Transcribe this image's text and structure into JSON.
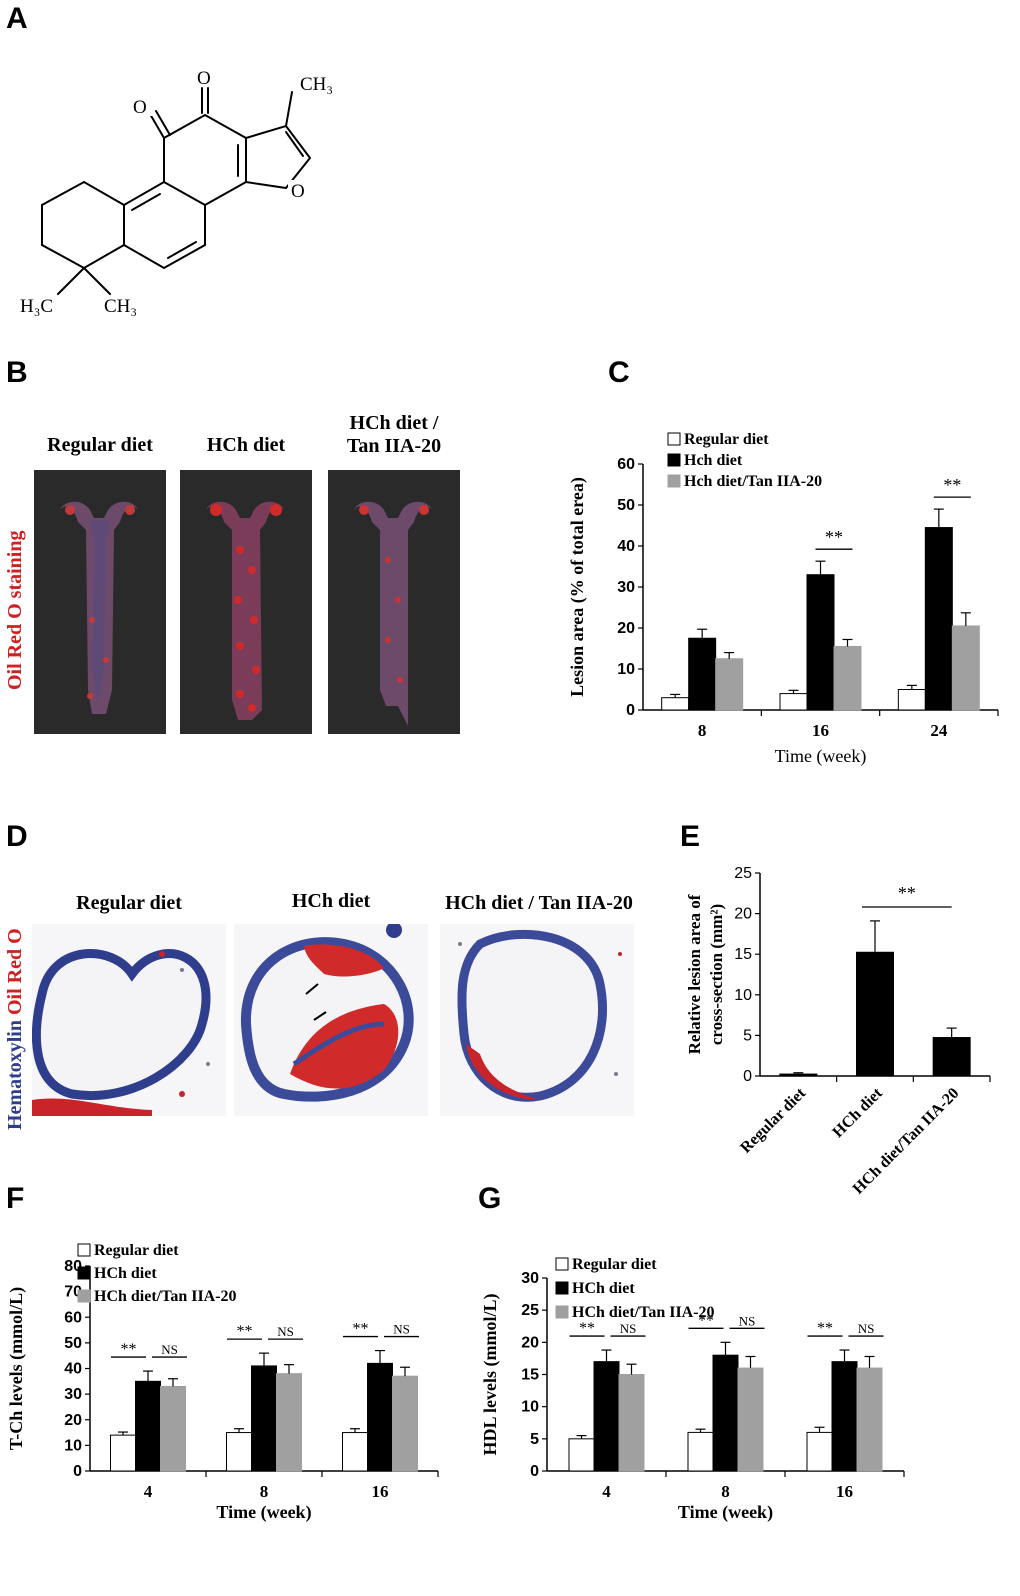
{
  "panel_labels": [
    "A",
    "B",
    "C",
    "D",
    "E",
    "F",
    "G"
  ],
  "molecule": {
    "o_top": "O",
    "o_left": "O",
    "o_ring": "O",
    "ch3_top": "CH₃",
    "h3c": "H₃C",
    "ch3_bottom": "CH₃"
  },
  "panel_b": {
    "side_label_part1": "Oil Red O",
    "side_label_part2": "staining",
    "titles": [
      "Regular diet",
      "HCh diet",
      "HCh diet /\nTan IIA-20"
    ]
  },
  "panel_d": {
    "side_label_part1": "Hematoxylin",
    "side_label_part2": "Oil Red O",
    "titles": [
      "Regular diet",
      "HCh diet",
      "HCh diet / Tan IIA-20"
    ]
  },
  "colors": {
    "regular": "#ffffff",
    "hch": "#000000",
    "tan": "#a0a0a0",
    "stain_red": "#d12020",
    "stain_blue": "#2e3d8c"
  },
  "chart_data": [
    {
      "id": "C",
      "type": "bar",
      "categories": [
        "8",
        "16",
        "24"
      ],
      "series": [
        {
          "name": "Regular diet",
          "values": [
            3,
            4,
            5
          ],
          "errors": [
            0.8,
            0.8,
            1.0
          ]
        },
        {
          "name": "Hch diet",
          "values": [
            17.5,
            33,
            44.5
          ],
          "errors": [
            2.2,
            3.3,
            4.5
          ]
        },
        {
          "name": "Hch diet/Tan IIA-20",
          "values": [
            12.5,
            15.5,
            20.5
          ],
          "errors": [
            1.5,
            1.7,
            3.2
          ]
        }
      ],
      "xlabel": "Time (week)",
      "ylabel": "Lesion area (% of total erea)",
      "ylim": [
        0,
        60
      ],
      "yticks": [
        0,
        10,
        20,
        30,
        40,
        50,
        60
      ],
      "significance": [
        {
          "category": "16",
          "label": "**"
        },
        {
          "category": "24",
          "label": "**"
        }
      ],
      "legend_position": "top-left"
    },
    {
      "id": "E",
      "type": "bar",
      "categories": [
        "Regular diet",
        "HCh diet",
        "HCh diet/Tan IIA-20"
      ],
      "values": [
        0.3,
        15.3,
        4.8
      ],
      "errors": [
        0.1,
        3.8,
        1.1
      ],
      "ylabel": "Relative lesion area of cross-section (mm²)",
      "ylabel_line1": "Relative lesion area of",
      "ylabel_line2": "cross-section (mm²)",
      "ylim": [
        0,
        25
      ],
      "yticks": [
        0,
        5,
        10,
        15,
        20,
        25
      ],
      "significance": [
        {
          "label": "**"
        }
      ]
    },
    {
      "id": "F",
      "type": "bar",
      "categories": [
        "4",
        "8",
        "16"
      ],
      "series": [
        {
          "name": "Regular diet",
          "values": [
            14,
            15,
            15
          ],
          "errors": [
            1.2,
            1.5,
            1.5
          ]
        },
        {
          "name": "HCh diet",
          "values": [
            35,
            41,
            42
          ],
          "errors": [
            4,
            5,
            5
          ]
        },
        {
          "name": "HCh diet/Tan IIA-20",
          "values": [
            33,
            38,
            37
          ],
          "errors": [
            3,
            3.5,
            3.5
          ]
        }
      ],
      "xlabel": "Time (week)",
      "ylabel": "T-Ch levels (mmol/L)",
      "ylim": [
        0,
        80
      ],
      "yticks": [
        0,
        10,
        20,
        30,
        40,
        50,
        60,
        70,
        80
      ],
      "significance_labels": [
        "**",
        "NS"
      ],
      "legend_position": "top-left"
    },
    {
      "id": "G",
      "type": "bar",
      "categories": [
        "4",
        "8",
        "16"
      ],
      "series": [
        {
          "name": "Regular diet",
          "values": [
            5,
            6,
            6
          ],
          "errors": [
            0.5,
            0.5,
            0.8
          ]
        },
        {
          "name": "HCh diet",
          "values": [
            17,
            18,
            17
          ],
          "errors": [
            1.8,
            2,
            1.8
          ]
        },
        {
          "name": "HCh diet/Tan IIA-20",
          "values": [
            15,
            16,
            16
          ],
          "errors": [
            1.6,
            1.8,
            1.8
          ]
        }
      ],
      "xlabel": "Time (week)",
      "ylabel": "HDL levels (mmol/L)",
      "ylim": [
        0,
        30
      ],
      "yticks": [
        0,
        5,
        10,
        15,
        20,
        25,
        30
      ],
      "significance_labels": [
        "**",
        "NS"
      ],
      "legend_position": "top-left"
    }
  ]
}
